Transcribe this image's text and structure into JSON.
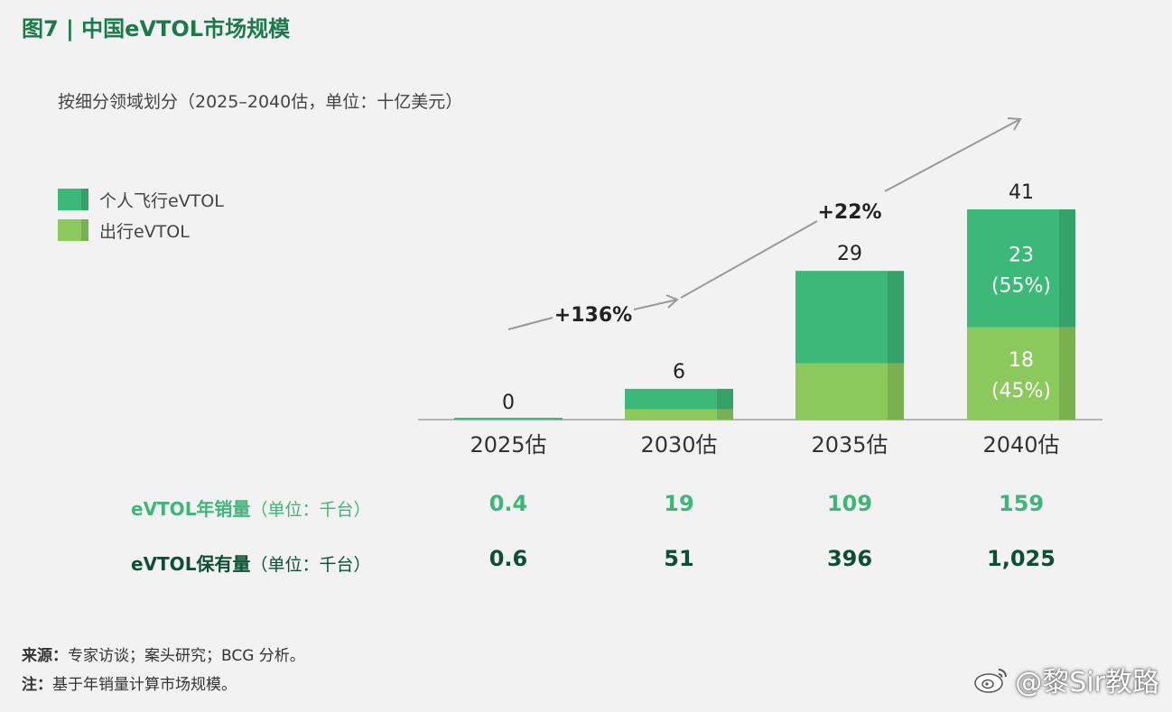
{
  "header": {
    "title": "图7 | 中国eVTOL市场规模",
    "subtitle": "按细分领域划分（2025–2040估，单位：十亿美元）"
  },
  "colors": {
    "personal": "#3cb878",
    "mobility": "#8bc95c",
    "title_green": "#1a7a4c",
    "row1": "#3fb57c",
    "row2": "#0d4f35"
  },
  "legend": [
    {
      "label": "个人飞行eVTOL",
      "color": "#3cb878"
    },
    {
      "label": "出行eVTOL",
      "color": "#8bc95c"
    }
  ],
  "chart_data": {
    "type": "bar",
    "stacked": true,
    "categories": [
      "2025估",
      "2030估",
      "2035估",
      "2040估"
    ],
    "series": [
      {
        "name": "出行eVTOL",
        "values": [
          0,
          2,
          11,
          18
        ]
      },
      {
        "name": "个人飞行eVTOL",
        "values": [
          0,
          4,
          18,
          23
        ]
      }
    ],
    "totals": [
      "0",
      "6",
      "29",
      "41"
    ],
    "segment_labels": {
      "2040估": {
        "personal": [
          "23",
          "(55%)"
        ],
        "mobility": [
          "18",
          "(45%)"
        ]
      }
    },
    "growth_annotations": [
      "+136%",
      "+22%"
    ],
    "ylim": [
      0,
      45
    ],
    "legend_position": "top-left"
  },
  "table": {
    "rows": [
      {
        "label": "eVTOL年销量",
        "unit": "（单位：千台）",
        "values": [
          "0.4",
          "19",
          "109",
          "159"
        ]
      },
      {
        "label": "eVTOL保有量",
        "unit": "（单位：千台）",
        "values": [
          "0.6",
          "51",
          "396",
          "1,025"
        ]
      }
    ]
  },
  "notes": {
    "source_label": "来源：",
    "source_text": "专家访谈；案头研究；BCG 分析。",
    "note_label": "注：",
    "note_text": "基于年销量计算市场规模。"
  },
  "watermark": {
    "text": "@黎Sir教路",
    "icon": "weibo-icon"
  }
}
